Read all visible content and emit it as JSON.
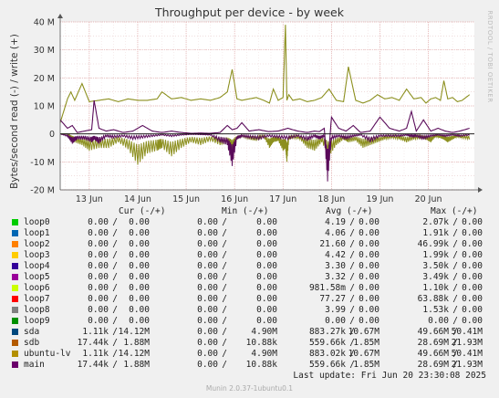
{
  "chart_data": {
    "type": "line",
    "title": "Throughput per device - by week",
    "ylabel": "Bytes/second read (-) / write (+)",
    "ylim": [
      -20000000,
      40000000
    ],
    "yticks": [
      -20000000,
      -10000000,
      0,
      10000000,
      20000000,
      30000000,
      40000000
    ],
    "ytick_labels": [
      "-20 M",
      "-10 M",
      "0",
      "10 M",
      "20 M",
      "30 M",
      "40 M"
    ],
    "xlim": [
      12.4,
      20.95
    ],
    "xticks": [
      13,
      14,
      15,
      16,
      17,
      18,
      19,
      20
    ],
    "xtick_labels": [
      "13 Jun",
      "14 Jun",
      "15 Jun",
      "16 Jun",
      "17 Jun",
      "18 Jun",
      "19 Jun",
      "20 Jun"
    ],
    "grid": true,
    "series": [
      {
        "name": "sdb",
        "color": "#8c8f1e",
        "x": [
          12.4,
          12.55,
          12.62,
          12.7,
          12.85,
          13.0,
          13.2,
          13.4,
          13.6,
          13.8,
          14.0,
          14.2,
          14.4,
          14.5,
          14.7,
          14.9,
          15.1,
          15.3,
          15.5,
          15.7,
          15.85,
          15.95,
          16.05,
          16.15,
          16.3,
          16.45,
          16.6,
          16.72,
          16.8,
          16.9,
          17.0,
          17.05,
          17.08,
          17.12,
          17.2,
          17.35,
          17.5,
          17.65,
          17.8,
          17.95,
          18.1,
          18.25,
          18.35,
          18.5,
          18.65,
          18.8,
          18.95,
          19.1,
          19.25,
          19.4,
          19.55,
          19.7,
          19.85,
          19.95,
          20.05,
          20.15,
          20.25,
          20.32,
          20.4,
          20.5,
          20.6,
          20.7,
          20.85
        ],
        "y": [
          4.0,
          12.5,
          15.0,
          12.0,
          18.0,
          11.5,
          12.0,
          12.5,
          11.5,
          12.5,
          12.0,
          12.0,
          12.5,
          15.0,
          12.5,
          13.0,
          12.0,
          12.5,
          12.0,
          13.0,
          15.0,
          23.0,
          12.5,
          12.0,
          12.5,
          13.0,
          12.0,
          11.0,
          16.0,
          12.0,
          13.0,
          39.0,
          12.0,
          14.0,
          12.0,
          12.5,
          11.5,
          12.0,
          13.0,
          16.0,
          12.0,
          11.5,
          24.0,
          12.0,
          11.0,
          12.0,
          14.0,
          12.5,
          13.0,
          12.0,
          16.0,
          12.5,
          13.0,
          11.0,
          12.5,
          13.0,
          12.0,
          19.0,
          12.5,
          13.0,
          11.5,
          12.0,
          14.0
        ],
        "min_envelope_y": [
          0,
          0,
          -1.5,
          -3.0,
          -4.0,
          -6.0,
          -5.0,
          -5.0,
          -3.0,
          -5.5,
          -11.0,
          -7.0,
          -6.0,
          -5.0,
          -8.0,
          -5.0,
          -3.0,
          -4.0,
          -2.5,
          -4.0,
          -3.5,
          -6.0,
          -2.0,
          -1.0,
          -2.0,
          -2.5,
          -1.0,
          -5.0,
          -3.0,
          -2.5,
          -6.0,
          -5.0,
          -10.0,
          -2.0,
          -1.5,
          -2.0,
          -5.0,
          -6.0,
          -3.0,
          -8.0,
          -4.0,
          -2.0,
          -3.0,
          -2.5,
          -5.0,
          -4.0,
          -3.0,
          -2.0,
          -1.5,
          -2.0,
          -3.0,
          -2.0,
          -1.5,
          -2.0,
          -3.0,
          -1.0,
          -1.5,
          -2.0,
          -3.0,
          -2.0,
          -1.0,
          -1.5,
          -2.0
        ]
      },
      {
        "name": "main",
        "color": "#5a0b5a",
        "x": [
          12.4,
          12.55,
          12.65,
          12.75,
          12.9,
          13.05,
          13.1,
          13.2,
          13.35,
          13.5,
          13.7,
          13.9,
          14.1,
          14.3,
          14.5,
          14.7,
          14.9,
          15.1,
          15.3,
          15.5,
          15.7,
          15.85,
          15.95,
          16.05,
          16.15,
          16.3,
          16.5,
          16.7,
          16.9,
          17.1,
          17.3,
          17.5,
          17.65,
          17.75,
          17.85,
          17.92,
          18.0,
          18.15,
          18.3,
          18.45,
          18.6,
          18.8,
          19.0,
          19.2,
          19.4,
          19.55,
          19.65,
          19.75,
          19.9,
          20.05,
          20.2,
          20.35,
          20.5,
          20.65,
          20.85
        ],
        "y": [
          5.0,
          2.0,
          3.0,
          0.5,
          1.0,
          1.5,
          12.0,
          2.0,
          1.0,
          1.5,
          0.5,
          1.0,
          3.0,
          1.0,
          0.5,
          1.0,
          0.5,
          0.2,
          0.3,
          0.2,
          0.5,
          3.0,
          1.5,
          2.0,
          4.0,
          1.0,
          1.5,
          0.8,
          1.0,
          2.0,
          1.0,
          0.5,
          1.0,
          0.8,
          2.0,
          -12.0,
          6.0,
          2.0,
          1.0,
          3.0,
          0.5,
          1.0,
          6.0,
          2.0,
          1.0,
          2.0,
          8.0,
          1.0,
          5.0,
          1.0,
          2.0,
          1.0,
          0.5,
          1.0,
          2.0
        ],
        "min_envelope_y": [
          0,
          -1.0,
          -3.5,
          -2.0,
          -2.0,
          -3.0,
          -2.0,
          -3.5,
          -1.0,
          -1.5,
          -1.0,
          -2.0,
          -1.5,
          -1.0,
          -0.5,
          -1.0,
          -0.5,
          -0.2,
          -0.3,
          -0.5,
          -3.0,
          -4.0,
          -11.5,
          -2.0,
          -1.0,
          -1.5,
          -2.0,
          -1.0,
          -1.5,
          -2.0,
          -1.0,
          -2.5,
          -1.0,
          -2.0,
          -1.0,
          -17.0,
          -2.0,
          -1.0,
          -2.0,
          -1.0,
          -0.5,
          -3.0,
          -1.0,
          -1.0,
          -1.0,
          -0.5,
          -1.0,
          -1.0,
          -2.0,
          -1.0,
          -0.5,
          -1.0,
          -0.5,
          -1.0,
          -0.5
        ]
      }
    ],
    "y_value_units": "millions of bytes/second"
  },
  "y_axis_label": "Bytes/second read (-) / write (+)",
  "watermark": "RRDTOOL / TOBI OETIKER",
  "legend": {
    "headers": {
      "cur": "Cur (-/+)",
      "min": "Min (-/+)",
      "avg": "Avg (-/+)",
      "max": "Max (-/+)"
    },
    "rows": [
      {
        "name": "loop0",
        "color": "#00cc00",
        "cur_r": "0.00",
        "cur_w": "0.00",
        "min_r": "0.00",
        "min_w": "0.00",
        "avg_r": "4.19",
        "avg_w": "0.00",
        "max_r": "2.07k",
        "max_w": "0.00"
      },
      {
        "name": "loop1",
        "color": "#0066b3",
        "cur_r": "0.00",
        "cur_w": "0.00",
        "min_r": "0.00",
        "min_w": "0.00",
        "avg_r": "4.06",
        "avg_w": "0.00",
        "max_r": "1.91k",
        "max_w": "0.00"
      },
      {
        "name": "loop2",
        "color": "#ff8000",
        "cur_r": "0.00",
        "cur_w": "0.00",
        "min_r": "0.00",
        "min_w": "0.00",
        "avg_r": "21.60",
        "avg_w": "0.00",
        "max_r": "46.99k",
        "max_w": "0.00"
      },
      {
        "name": "loop3",
        "color": "#ffcc00",
        "cur_r": "0.00",
        "cur_w": "0.00",
        "min_r": "0.00",
        "min_w": "0.00",
        "avg_r": "4.42",
        "avg_w": "0.00",
        "max_r": "1.99k",
        "max_w": "0.00"
      },
      {
        "name": "loop4",
        "color": "#330099",
        "cur_r": "0.00",
        "cur_w": "0.00",
        "min_r": "0.00",
        "min_w": "0.00",
        "avg_r": "3.30",
        "avg_w": "0.00",
        "max_r": "3.50k",
        "max_w": "0.00"
      },
      {
        "name": "loop5",
        "color": "#990099",
        "cur_r": "0.00",
        "cur_w": "0.00",
        "min_r": "0.00",
        "min_w": "0.00",
        "avg_r": "3.32",
        "avg_w": "0.00",
        "max_r": "3.49k",
        "max_w": "0.00"
      },
      {
        "name": "loop6",
        "color": "#ccff00",
        "cur_r": "0.00",
        "cur_w": "0.00",
        "min_r": "0.00",
        "min_w": "0.00",
        "avg_r": "981.58m",
        "avg_w": "0.00",
        "max_r": "1.10k",
        "max_w": "0.00"
      },
      {
        "name": "loop7",
        "color": "#ff0000",
        "cur_r": "0.00",
        "cur_w": "0.00",
        "min_r": "0.00",
        "min_w": "0.00",
        "avg_r": "77.27",
        "avg_w": "0.00",
        "max_r": "63.88k",
        "max_w": "0.00"
      },
      {
        "name": "loop8",
        "color": "#808080",
        "cur_r": "0.00",
        "cur_w": "0.00",
        "min_r": "0.00",
        "min_w": "0.00",
        "avg_r": "3.99",
        "avg_w": "0.00",
        "max_r": "1.53k",
        "max_w": "0.00"
      },
      {
        "name": "loop9",
        "color": "#008f00",
        "cur_r": "0.00",
        "cur_w": "0.00",
        "min_r": "0.00",
        "min_w": "0.00",
        "avg_r": "0.00",
        "avg_w": "0.00",
        "max_r": "0.00",
        "max_w": "0.00"
      },
      {
        "name": "sda",
        "color": "#00487d",
        "cur_r": "1.11k",
        "cur_w": "14.12M",
        "min_r": "0.00",
        "min_w": "4.90M",
        "avg_r": "883.27k",
        "avg_w": "10.67M",
        "max_r": "49.66M",
        "max_w": "50.41M"
      },
      {
        "name": "sdb",
        "color": "#b35a00",
        "cur_r": "17.44k",
        "cur_w": "1.88M",
        "min_r": "0.00",
        "min_w": "10.88k",
        "avg_r": "559.66k",
        "avg_w": "1.85M",
        "max_r": "28.69M",
        "max_w": "21.93M"
      },
      {
        "name": "ubuntu-lv",
        "color": "#b38f00",
        "cur_r": "1.11k",
        "cur_w": "14.12M",
        "min_r": "0.00",
        "min_w": "4.90M",
        "avg_r": "883.02k",
        "avg_w": "10.67M",
        "max_r": "49.66M",
        "max_w": "50.41M"
      },
      {
        "name": "main",
        "color": "#6b006b",
        "cur_r": "17.44k",
        "cur_w": "1.88M",
        "min_r": "0.00",
        "min_w": "10.88k",
        "avg_r": "559.66k",
        "avg_w": "1.85M",
        "max_r": "28.69M",
        "max_w": "21.93M"
      }
    ]
  },
  "last_update": "Last update: Fri Jun 20 23:30:08 2025",
  "munin_version": "Munin 2.0.37-1ubuntu0.1"
}
